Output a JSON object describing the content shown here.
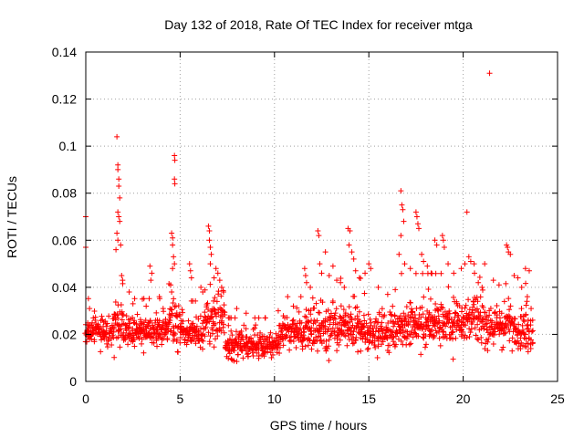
{
  "chart_data": {
    "type": "scatter",
    "title": "Day 132 of 2018, Rate Of TEC Index for receiver mtga",
    "xlabel": "GPS time / hours",
    "ylabel": "ROTI / TECUs",
    "xlim": [
      0,
      25
    ],
    "ylim": [
      0,
      0.14
    ],
    "xticks": [
      0,
      5,
      10,
      15,
      20,
      25
    ],
    "xtick_labels": [
      "0",
      "5",
      "10",
      "15",
      "20",
      "25"
    ],
    "yticks": [
      0,
      0.02,
      0.04,
      0.06,
      0.08,
      0.1,
      0.12,
      0.14
    ],
    "ytick_labels": [
      "0",
      "0.02",
      "0.04",
      "0.06",
      "0.08",
      "0.1",
      "0.12",
      "0.14"
    ],
    "grid": true,
    "marker": "+",
    "color": "#ff0000",
    "series": [
      {
        "name": "ROTI",
        "points": [
          [
            0.0,
            0.07
          ],
          [
            0.0,
            0.057
          ],
          [
            0.1,
            0.024
          ],
          [
            0.2,
            0.031
          ],
          [
            0.3,
            0.018
          ],
          [
            0.4,
            0.027
          ],
          [
            1.65,
            0.104
          ],
          [
            1.7,
            0.092
          ],
          [
            1.7,
            0.09
          ],
          [
            1.75,
            0.086
          ],
          [
            1.75,
            0.083
          ],
          [
            1.8,
            0.078
          ],
          [
            1.7,
            0.072
          ],
          [
            1.75,
            0.07
          ],
          [
            1.8,
            0.068
          ],
          [
            1.65,
            0.063
          ],
          [
            1.7,
            0.06
          ],
          [
            1.85,
            0.058
          ],
          [
            1.9,
            0.045
          ],
          [
            1.95,
            0.043
          ],
          [
            1.6,
            0.056
          ],
          [
            2.3,
            0.038
          ],
          [
            2.5,
            0.033
          ],
          [
            3.0,
            0.035
          ],
          [
            3.2,
            0.032
          ],
          [
            3.4,
            0.049
          ],
          [
            3.5,
            0.046
          ],
          [
            3.45,
            0.043
          ],
          [
            3.9,
            0.036
          ],
          [
            4.1,
            0.031
          ],
          [
            4.55,
            0.063
          ],
          [
            4.6,
            0.061
          ],
          [
            4.6,
            0.058
          ],
          [
            4.65,
            0.053
          ],
          [
            4.7,
            0.05
          ],
          [
            4.5,
            0.041
          ],
          [
            4.55,
            0.038
          ],
          [
            4.6,
            0.048
          ],
          [
            4.7,
            0.096
          ],
          [
            4.72,
            0.094
          ],
          [
            4.7,
            0.086
          ],
          [
            4.72,
            0.084
          ],
          [
            5.5,
            0.05
          ],
          [
            5.55,
            0.047
          ],
          [
            5.6,
            0.044
          ],
          [
            6.1,
            0.04
          ],
          [
            6.2,
            0.038
          ],
          [
            6.5,
            0.066
          ],
          [
            6.55,
            0.064
          ],
          [
            6.55,
            0.06
          ],
          [
            6.6,
            0.057
          ],
          [
            6.65,
            0.054
          ],
          [
            6.6,
            0.05
          ],
          [
            6.9,
            0.048
          ],
          [
            7.0,
            0.046
          ],
          [
            7.1,
            0.043
          ],
          [
            7.2,
            0.04
          ],
          [
            7.3,
            0.038
          ],
          [
            6.8,
            0.044
          ],
          [
            8.0,
            0.031
          ],
          [
            8.5,
            0.029
          ],
          [
            9.0,
            0.024
          ],
          [
            9.5,
            0.027
          ],
          [
            10.2,
            0.03
          ],
          [
            10.7,
            0.036
          ],
          [
            11.0,
            0.032
          ],
          [
            11.4,
            0.036
          ],
          [
            11.6,
            0.048
          ],
          [
            11.65,
            0.045
          ],
          [
            11.7,
            0.042
          ],
          [
            11.9,
            0.04
          ],
          [
            12.3,
            0.064
          ],
          [
            12.35,
            0.062
          ],
          [
            12.4,
            0.05
          ],
          [
            12.5,
            0.046
          ],
          [
            12.7,
            0.055
          ],
          [
            12.9,
            0.045
          ],
          [
            13.1,
            0.049
          ],
          [
            13.3,
            0.043
          ],
          [
            13.5,
            0.042
          ],
          [
            13.7,
            0.04
          ],
          [
            13.9,
            0.065
          ],
          [
            14.0,
            0.064
          ],
          [
            13.95,
            0.058
          ],
          [
            14.1,
            0.055
          ],
          [
            14.2,
            0.052
          ],
          [
            14.3,
            0.047
          ],
          [
            14.5,
            0.044
          ],
          [
            14.8,
            0.046
          ],
          [
            15.0,
            0.05
          ],
          [
            15.1,
            0.048
          ],
          [
            15.5,
            0.04
          ],
          [
            16.0,
            0.037
          ],
          [
            16.4,
            0.039
          ],
          [
            16.7,
            0.081
          ],
          [
            16.75,
            0.075
          ],
          [
            16.8,
            0.073
          ],
          [
            16.85,
            0.068
          ],
          [
            16.7,
            0.062
          ],
          [
            16.6,
            0.054
          ],
          [
            16.9,
            0.05
          ],
          [
            17.2,
            0.048
          ],
          [
            17.5,
            0.072
          ],
          [
            17.55,
            0.07
          ],
          [
            17.6,
            0.067
          ],
          [
            17.65,
            0.065
          ],
          [
            17.8,
            0.054
          ],
          [
            17.9,
            0.051
          ],
          [
            18.1,
            0.049
          ],
          [
            18.3,
            0.046
          ],
          [
            18.5,
            0.06
          ],
          [
            18.6,
            0.058
          ],
          [
            18.9,
            0.062
          ],
          [
            18.95,
            0.06
          ],
          [
            19.0,
            0.057
          ],
          [
            19.2,
            0.05
          ],
          [
            19.5,
            0.046
          ],
          [
            19.9,
            0.048
          ],
          [
            20.2,
            0.072
          ],
          [
            20.3,
            0.053
          ],
          [
            20.4,
            0.051
          ],
          [
            20.6,
            0.046
          ],
          [
            20.8,
            0.042
          ],
          [
            21.0,
            0.04
          ],
          [
            21.4,
            0.131
          ],
          [
            21.6,
            0.043
          ],
          [
            21.9,
            0.041
          ],
          [
            22.3,
            0.058
          ],
          [
            22.35,
            0.057
          ],
          [
            22.4,
            0.055
          ],
          [
            22.5,
            0.054
          ],
          [
            22.7,
            0.045
          ],
          [
            22.9,
            0.044
          ],
          [
            23.1,
            0.04
          ],
          [
            23.3,
            0.048
          ],
          [
            23.5,
            0.047
          ],
          [
            23.4,
            0.036
          ],
          [
            23.6,
            0.031
          ]
        ],
        "band": {
          "x_start": 0.0,
          "x_end": 23.7,
          "x_step": 0.07,
          "segments": [
            {
              "x": [
                0,
                1.5
              ],
              "low": 0.01,
              "high": 0.034
            },
            {
              "x": [
                1.5,
                2.2
              ],
              "low": 0.009,
              "high": 0.04
            },
            {
              "x": [
                2.2,
                4.4
              ],
              "low": 0.01,
              "high": 0.034
            },
            {
              "x": [
                4.4,
                5.2
              ],
              "low": 0.01,
              "high": 0.04
            },
            {
              "x": [
                5.2,
                6.3
              ],
              "low": 0.009,
              "high": 0.033
            },
            {
              "x": [
                6.3,
                7.4
              ],
              "low": 0.011,
              "high": 0.046
            },
            {
              "x": [
                7.4,
                10.3
              ],
              "low": 0.006,
              "high": 0.026
            },
            {
              "x": [
                10.3,
                11.5
              ],
              "low": 0.009,
              "high": 0.034
            },
            {
              "x": [
                11.5,
                14.6
              ],
              "low": 0.006,
              "high": 0.042
            },
            {
              "x": [
                14.6,
                16.5
              ],
              "low": 0.008,
              "high": 0.036
            },
            {
              "x": [
                16.5,
                19.5
              ],
              "low": 0.007,
              "high": 0.044
            },
            {
              "x": [
                19.5,
                21.2
              ],
              "low": 0.008,
              "high": 0.048
            },
            {
              "x": [
                21.2,
                22.8
              ],
              "low": 0.009,
              "high": 0.04
            },
            {
              "x": [
                22.8,
                23.7
              ],
              "low": 0.007,
              "high": 0.04
            }
          ]
        }
      }
    ]
  }
}
